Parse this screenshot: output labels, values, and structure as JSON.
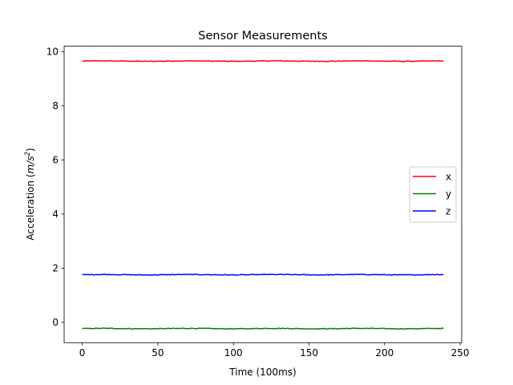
{
  "chart_data": {
    "type": "line",
    "title": "Sensor Measurements",
    "xlabel": "Time (100ms)",
    "ylabel_prefix": "Acceleration (",
    "ylabel_unit": "m/s",
    "ylabel_exponent": "2",
    "ylabel_suffix": ")",
    "xlim": [
      -12,
      251
    ],
    "ylim": [
      -0.75,
      10.2
    ],
    "xticks": [
      0,
      50,
      100,
      150,
      200,
      250
    ],
    "yticks": [
      0,
      2,
      4,
      6,
      8,
      10
    ],
    "x_start": 0,
    "x_end": 239,
    "legend_position": "center-right",
    "grid": false,
    "series": [
      {
        "name": "x",
        "color": "#ff0000",
        "mean": 9.65,
        "noise": 0.012
      },
      {
        "name": "y",
        "color": "#008000",
        "mean": -0.23,
        "noise": 0.012
      },
      {
        "name": "z",
        "color": "#0000ff",
        "mean": 1.76,
        "noise": 0.012
      }
    ]
  }
}
